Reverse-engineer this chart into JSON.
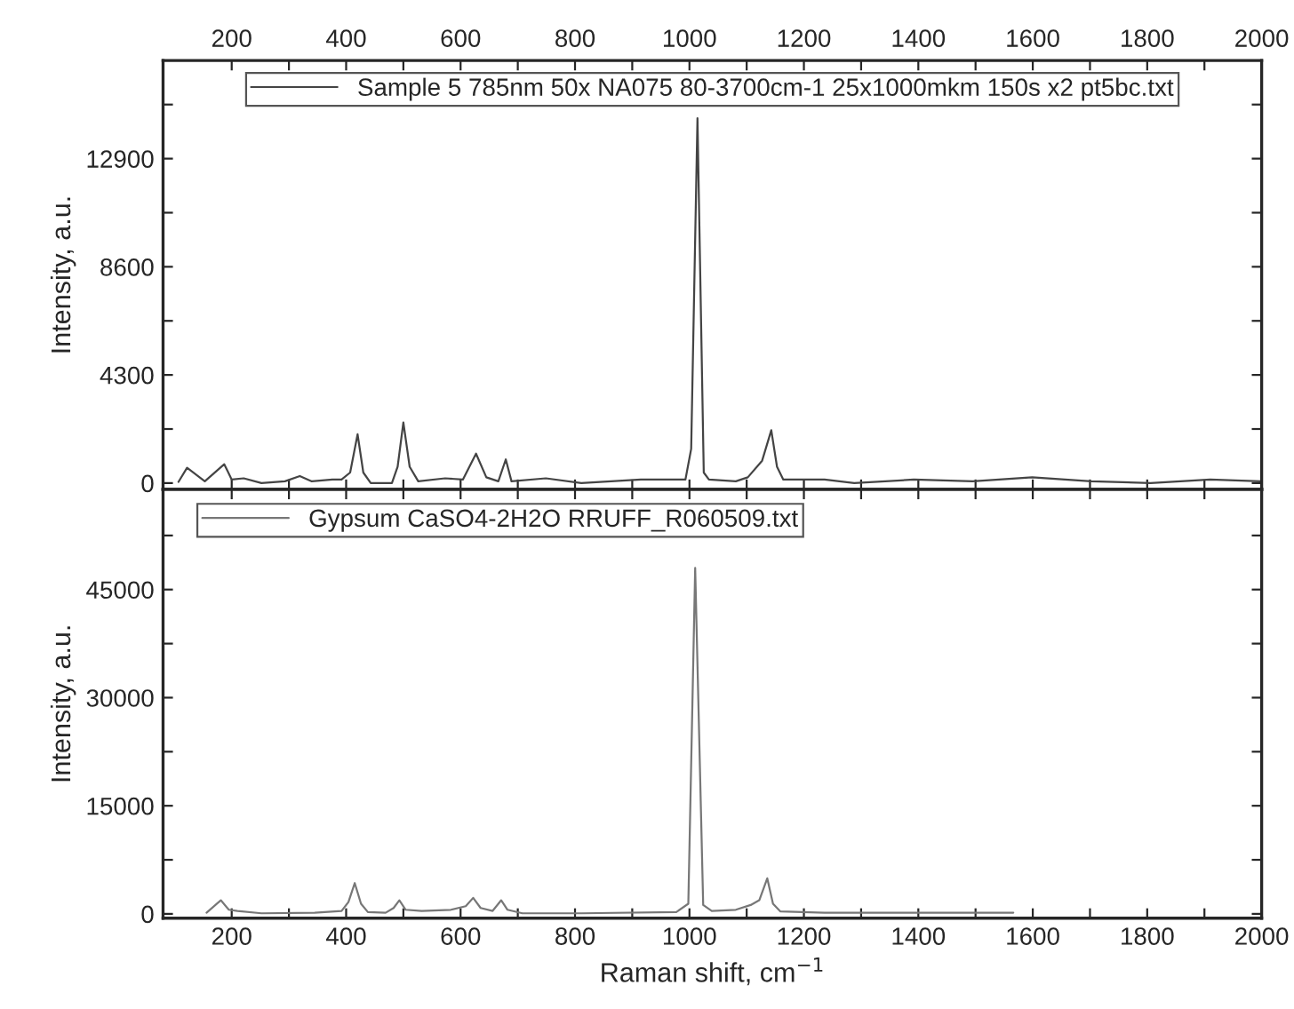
{
  "chart_data": [
    {
      "type": "line",
      "ylabel": "Intensity, a.u.",
      "legend": "top",
      "xlim": [
        80,
        2000
      ],
      "xticks": [
        200,
        {
          "value": 300,
          "label": null
        },
        400,
        {
          "value": 500,
          "label": null
        },
        600,
        {
          "value": 700,
          "label": null
        },
        800,
        {
          "value": 900,
          "label": null
        },
        1000,
        {
          "value": 1100,
          "label": null
        },
        1200,
        {
          "value": 1300,
          "label": null
        },
        1400,
        {
          "value": 1500,
          "label": null
        },
        1600,
        {
          "value": 1700,
          "label": null
        },
        1800,
        {
          "value": 1900,
          "label": null
        },
        2000
      ],
      "ylim": [
        -250,
        16800
      ],
      "yticks": [
        0,
        {
          "value": 2150,
          "label": null
        },
        4300,
        {
          "value": 6450,
          "label": null
        },
        8600,
        {
          "value": 10750,
          "label": null
        },
        12900,
        {
          "value": 15050,
          "label": null
        }
      ],
      "series": [
        {
          "name": "Sample 5 785nm 50x NA075 80-3700cm-1 25x1000mkm 150s x2 pt5bc.txt",
          "color": "#444444",
          "x": [
            107,
            122,
            153,
            187,
            200,
            221,
            252,
            293,
            319,
            340,
            376,
            392,
            407,
            420,
            430,
            443,
            480,
            490,
            500,
            511,
            526,
            573,
            604,
            627,
            645,
            666,
            679,
            689,
            749,
            811,
            915,
            993,
            1003,
            1014,
            1025,
            1034,
            1081,
            1102,
            1127,
            1143,
            1153,
            1164,
            1236,
            1288,
            1392,
            1495,
            1599,
            1702,
            1806,
            1910,
            1998
          ],
          "values": [
            50,
            608,
            70,
            750,
            140,
            190,
            0,
            70,
            280,
            70,
            140,
            140,
            420,
            1940,
            420,
            0,
            0,
            650,
            2410,
            650,
            70,
            190,
            140,
            1170,
            230,
            70,
            940,
            70,
            190,
            0,
            140,
            140,
            1360,
            14510,
            420,
            140,
            70,
            230,
            890,
            2100,
            650,
            140,
            140,
            0,
            140,
            70,
            230,
            70,
            0,
            140,
            70
          ]
        }
      ]
    },
    {
      "type": "line",
      "ylabel": "Intensity, a.u.",
      "xlabel": "Raman shift, cm$^{−1}$",
      "legend": "top left",
      "xlim": [
        80,
        2000
      ],
      "xticks": [
        200,
        {
          "value": 300,
          "label": null
        },
        400,
        {
          "value": 500,
          "label": null
        },
        600,
        {
          "value": 700,
          "label": null
        },
        800,
        {
          "value": 900,
          "label": null
        },
        1000,
        {
          "value": 1100,
          "label": null
        },
        1200,
        {
          "value": 1300,
          "label": null
        },
        1400,
        {
          "value": 1500,
          "label": null
        },
        1600,
        {
          "value": 1700,
          "label": null
        },
        1800,
        {
          "value": 1900,
          "label": null
        },
        2000
      ],
      "ylim": [
        -600,
        58900
      ],
      "yticks": [
        0,
        {
          "value": 7500,
          "label": null
        },
        15000,
        {
          "value": 22500,
          "label": null
        },
        30000,
        {
          "value": 37500,
          "label": null
        },
        45000,
        {
          "value": 52500,
          "label": null
        }
      ],
      "series": [
        {
          "name": "Gypsum CaSO4-2H2O RRUFF_R060509.txt",
          "color": "#777777",
          "x": [
            156,
            181,
            195,
            210,
            252,
            345,
            392,
            404,
            415,
            426,
            438,
            469,
            483,
            493,
            504,
            532,
            583,
            609,
            622,
            635,
            656,
            671,
            682,
            708,
            811,
            977,
            998,
            1010,
            1024,
            1039,
            1081,
            1107,
            1122,
            1136,
            1146,
            1159,
            1236,
            1392,
            1566
          ],
          "values": [
            160,
            1890,
            570,
            410,
            80,
            160,
            410,
            1640,
            4270,
            1400,
            250,
            160,
            820,
            1890,
            570,
            410,
            570,
            1070,
            2220,
            820,
            410,
            1890,
            570,
            80,
            80,
            250,
            1400,
            48000,
            1230,
            410,
            570,
            1230,
            1890,
            4930,
            1400,
            330,
            160,
            160,
            160
          ]
        }
      ]
    }
  ]
}
